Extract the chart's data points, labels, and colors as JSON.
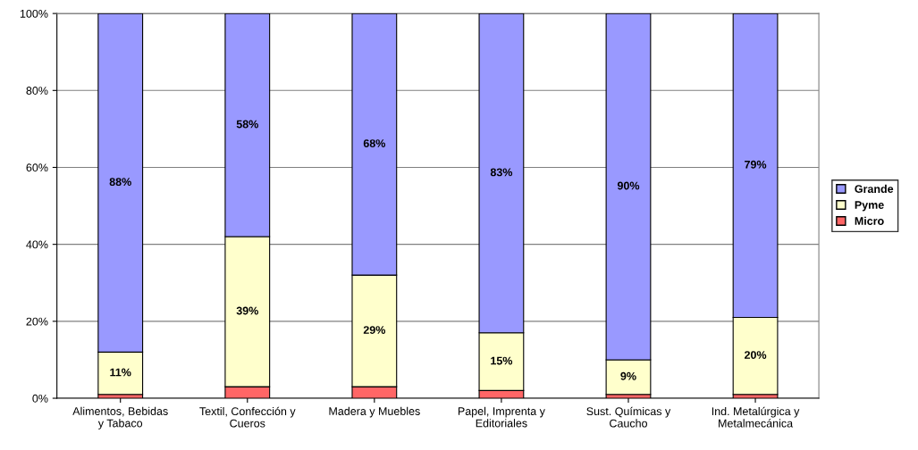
{
  "chart_data": {
    "type": "bar",
    "stacked": true,
    "categories": [
      "Alimentos, Bebidas\ny Tabaco",
      "Textil, Confección y\nCueros",
      "Madera y Muebles",
      "Papel, Imprenta y\nEditoriales",
      "Sust. Químicas y\nCaucho",
      "Ind. Metalúrgica y\nMetalmecánica"
    ],
    "series": [
      {
        "name": "Micro",
        "color": "#ff6666",
        "values": [
          1,
          3,
          3,
          2,
          1,
          1
        ],
        "value_labels": [
          null,
          null,
          null,
          null,
          null,
          null
        ]
      },
      {
        "name": "Pyme",
        "color": "#ffffcc",
        "values": [
          11,
          39,
          29,
          15,
          9,
          20
        ],
        "value_labels": [
          "11%",
          "39%",
          "29%",
          "15%",
          "9%",
          "20%"
        ]
      },
      {
        "name": "Grande",
        "color": "#9999ff",
        "values": [
          88,
          58,
          68,
          83,
          90,
          79
        ],
        "value_labels": [
          "88%",
          "58%",
          "68%",
          "83%",
          "90%",
          "79%"
        ]
      }
    ],
    "ylim": [
      0,
      100
    ],
    "yticks": [
      {
        "value": 0,
        "label": "0%"
      },
      {
        "value": 20,
        "label": "20%"
      },
      {
        "value": 40,
        "label": "40%"
      },
      {
        "value": 60,
        "label": "60%"
      },
      {
        "value": 80,
        "label": "80%"
      },
      {
        "value": 100,
        "label": "100%"
      }
    ],
    "grid": "y",
    "legend": "right"
  }
}
